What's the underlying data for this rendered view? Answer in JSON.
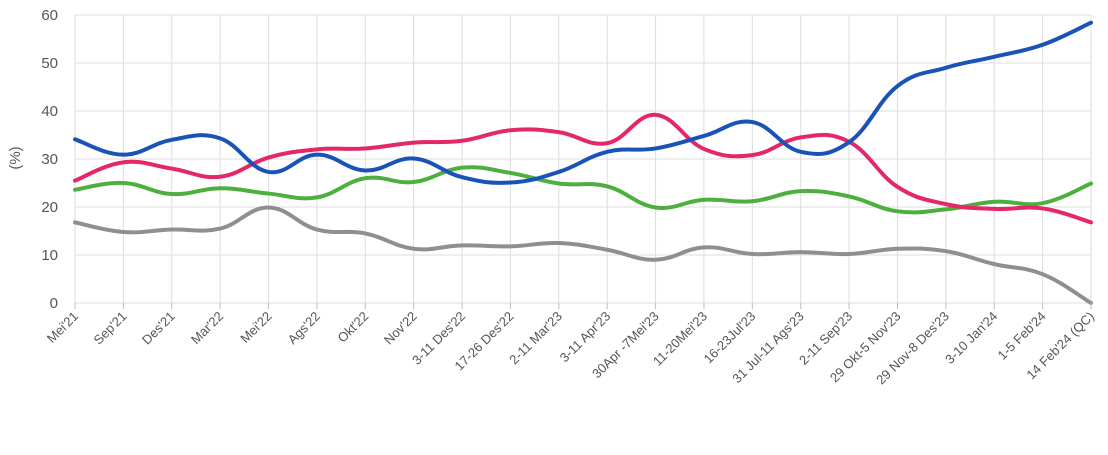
{
  "chart_data": {
    "type": "line",
    "title": "",
    "xlabel": "",
    "ylabel": "(%)",
    "ylim": [
      0,
      60
    ],
    "yticks": [
      0,
      10,
      20,
      30,
      40,
      50,
      60
    ],
    "grid": true,
    "legend": "none",
    "categories": [
      "Mei'21",
      "Sep'21",
      "Des'21",
      "Mar'22",
      "Mei'22",
      "Ags'22",
      "Okt'22",
      "Nov'22",
      "3-11 Des'22",
      "17-26 Des'22",
      "2-11 Mar'23",
      "3-11 Apr'23",
      "30Apr -7Mei'23",
      "11-20Mei'23",
      "16-23Jul'23",
      "31 Jul-11 Ags'23",
      "2-11 Sep'23",
      "29 Okt-5 Nov'23",
      "29 Nov-8 Des'23",
      "3-10 Jan'24",
      "1-5 Feb'24",
      "14 Feb'24 (QC)"
    ],
    "series": [
      {
        "color": "#1a53b8",
        "values": [
          34.1,
          30.9,
          34.0,
          34.3,
          27.3,
          30.9,
          27.6,
          30.1,
          26.2,
          25.1,
          27.3,
          31.5,
          32.2,
          34.8,
          37.7,
          31.5,
          33.5,
          45.2,
          49.0,
          51.3,
          53.8,
          58.4
        ]
      },
      {
        "color": "#e4276b",
        "values": [
          25.5,
          29.3,
          28.0,
          26.3,
          30.3,
          32.0,
          32.2,
          33.4,
          33.8,
          36.0,
          35.6,
          33.3,
          39.2,
          32.1,
          30.8,
          34.5,
          33.6,
          24.2,
          20.6,
          19.6,
          19.7,
          16.8
        ]
      },
      {
        "color": "#4caf3e",
        "values": [
          23.6,
          25.0,
          22.7,
          23.9,
          22.8,
          22.0,
          26.0,
          25.2,
          28.2,
          27.1,
          24.9,
          24.3,
          19.9,
          21.5,
          21.2,
          23.3,
          22.2,
          19.1,
          19.5,
          21.1,
          20.8,
          24.9
        ]
      },
      {
        "color": "#8f8f8f",
        "values": [
          16.8,
          14.8,
          15.3,
          15.5,
          19.9,
          15.3,
          14.5,
          11.3,
          12.0,
          11.8,
          12.5,
          11.1,
          9.0,
          11.6,
          10.2,
          10.6,
          10.2,
          11.3,
          10.8,
          8.1,
          6.0,
          0.0
        ]
      }
    ]
  }
}
